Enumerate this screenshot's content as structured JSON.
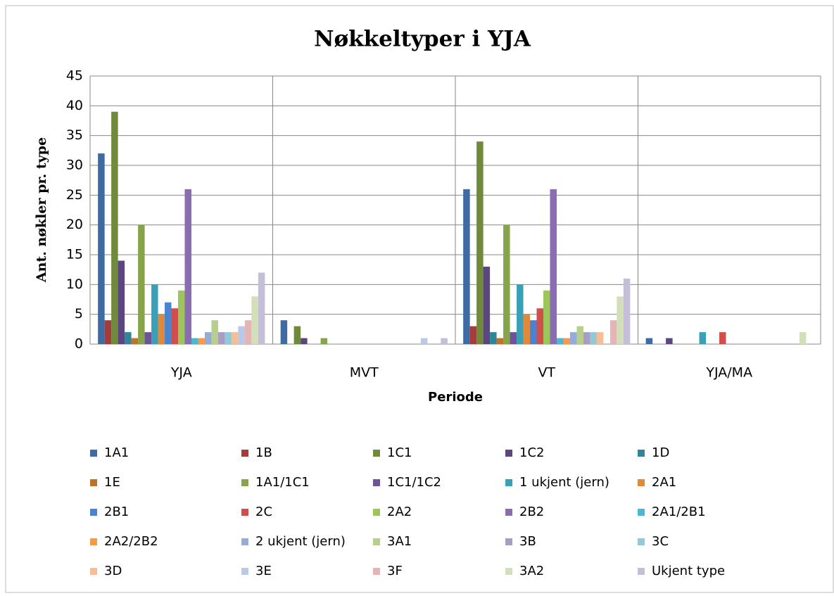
{
  "chart_data": {
    "type": "bar",
    "title": "Nøkkeltyper i YJA",
    "x_label": "Periode",
    "y_label": "Ant. nøkler pr. type",
    "categories": [
      "YJA",
      "MVT",
      "VT",
      "YJA/MA"
    ],
    "ylim": [
      0,
      45
    ],
    "yticks": [
      0,
      5,
      10,
      15,
      20,
      25,
      30,
      35,
      40,
      45
    ],
    "grid": true,
    "series": [
      {
        "name": "1A1",
        "color": "#3e6ba3",
        "values": [
          32,
          4,
          26,
          1
        ]
      },
      {
        "name": "1B",
        "color": "#a33c3a",
        "values": [
          4,
          0,
          3,
          0
        ]
      },
      {
        "name": "1C1",
        "color": "#6e8a3a",
        "values": [
          39,
          3,
          34,
          0
        ]
      },
      {
        "name": "1C2",
        "color": "#5c4680",
        "values": [
          14,
          1,
          13,
          1
        ]
      },
      {
        "name": "1D",
        "color": "#2f8698",
        "values": [
          2,
          0,
          2,
          0
        ]
      },
      {
        "name": "1E",
        "color": "#c0712a",
        "values": [
          1,
          0,
          1,
          0
        ]
      },
      {
        "name": "1A1/1C1",
        "color": "#86a44a",
        "values": [
          20,
          1,
          20,
          0
        ]
      },
      {
        "name": "1C1/1C2",
        "color": "#6e5497",
        "values": [
          2,
          0,
          2,
          0
        ]
      },
      {
        "name": "1 ukjent (jern)",
        "color": "#3aa0b8",
        "values": [
          10,
          0,
          10,
          2
        ]
      },
      {
        "name": "2A1",
        "color": "#e0893a",
        "values": [
          5,
          0,
          5,
          0
        ]
      },
      {
        "name": "2B1",
        "color": "#4a84d0",
        "values": [
          7,
          0,
          4,
          0
        ]
      },
      {
        "name": "2C",
        "color": "#d04e4b",
        "values": [
          6,
          0,
          6,
          2
        ]
      },
      {
        "name": "2A2",
        "color": "#9cc55a",
        "values": [
          9,
          0,
          9,
          0
        ]
      },
      {
        "name": "2B2",
        "color": "#8a6cb0",
        "values": [
          26,
          0,
          26,
          0
        ]
      },
      {
        "name": "2A1/2B1",
        "color": "#4ab8d0",
        "values": [
          1,
          0,
          1,
          0
        ]
      },
      {
        "name": "2A2/2B2",
        "color": "#f79a46",
        "values": [
          1,
          0,
          1,
          0
        ]
      },
      {
        "name": "2 ukjent (jern)",
        "color": "#95acd8",
        "values": [
          2,
          0,
          2,
          0
        ]
      },
      {
        "name": "3A1",
        "color": "#b6cf8c",
        "values": [
          4,
          0,
          3,
          0
        ]
      },
      {
        "name": "3B",
        "color": "#a99dc4",
        "values": [
          2,
          0,
          2,
          0
        ]
      },
      {
        "name": "3C",
        "color": "#92c8d8",
        "values": [
          2,
          0,
          2,
          0
        ]
      },
      {
        "name": "3D",
        "color": "#f9bd95",
        "values": [
          2,
          0,
          2,
          0
        ]
      },
      {
        "name": "3E",
        "color": "#b9c9e6",
        "values": [
          3,
          1,
          0,
          0
        ]
      },
      {
        "name": "3F",
        "color": "#e4b5b4",
        "values": [
          4,
          0,
          4,
          0
        ]
      },
      {
        "name": "3A2",
        "color": "#d2dfb8",
        "values": [
          8,
          0,
          8,
          2
        ]
      },
      {
        "name": "Ukjent type",
        "color": "#c5bed9",
        "values": [
          12,
          1,
          11,
          0
        ]
      }
    ]
  }
}
